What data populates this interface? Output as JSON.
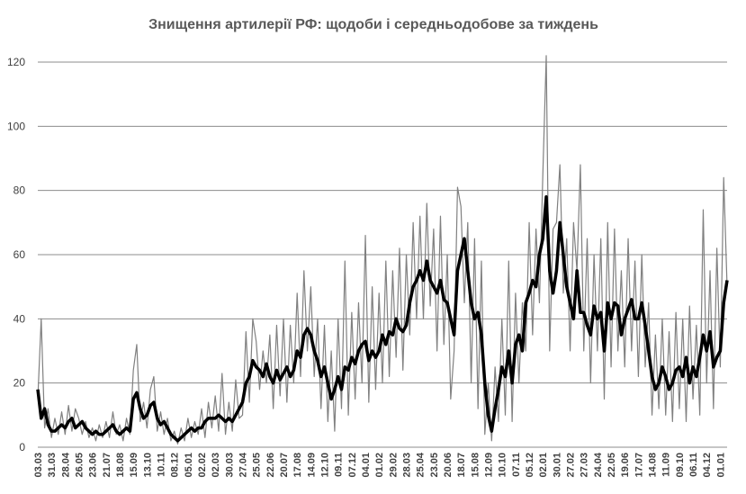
{
  "chart_data": {
    "type": "line",
    "title": "Знищення артилерії РФ: щодоби і середньодобове за тиждень",
    "categories": [
      "03.03",
      null,
      null,
      null,
      "31.03",
      null,
      null,
      null,
      "28.04",
      null,
      null,
      null,
      "26.05",
      null,
      null,
      null,
      "23.06",
      null,
      null,
      null,
      "21.07",
      null,
      null,
      null,
      "18.08",
      null,
      null,
      null,
      "15.09",
      null,
      null,
      null,
      "13.10",
      null,
      null,
      null,
      "10.11",
      null,
      null,
      null,
      "08.12",
      null,
      null,
      null,
      "05.01",
      null,
      null,
      null,
      "02.02",
      null,
      null,
      null,
      "02.03",
      null,
      null,
      null,
      "30.03",
      null,
      null,
      null,
      "27.04",
      null,
      null,
      null,
      "25.05",
      null,
      null,
      null,
      "22.06",
      null,
      null,
      null,
      "20.07",
      null,
      null,
      null,
      "17.08",
      null,
      null,
      null,
      "14.09",
      null,
      null,
      null,
      "12.10",
      null,
      null,
      null,
      "09.11",
      null,
      null,
      null,
      "07.12",
      null,
      null,
      null,
      "04.01",
      null,
      null,
      null,
      "01.02",
      null,
      null,
      null,
      "29.02",
      null,
      null,
      null,
      "28.03",
      null,
      null,
      null,
      "25.04",
      null,
      null,
      null,
      "23.05",
      null,
      null,
      null,
      "20.06",
      null,
      null,
      null,
      "18.07",
      null,
      null,
      null,
      "15.08",
      null,
      null,
      null,
      "12.09",
      null,
      null,
      null,
      "10.10",
      null,
      null,
      null,
      "07.11",
      null,
      null,
      null,
      "05.12",
      null,
      null,
      null,
      "02.01",
      null,
      null,
      null,
      "30.01",
      null,
      null,
      null,
      "27.02",
      null,
      null,
      null,
      "27.03",
      null,
      null,
      null,
      "24.04",
      null,
      null,
      null,
      "22.05",
      null,
      null,
      null,
      "19.06",
      null,
      null,
      null,
      "17.07",
      null,
      null,
      null,
      "14.08",
      null,
      null,
      null,
      "11.09",
      null,
      null,
      null,
      "09.10",
      null,
      null,
      null,
      "06.11",
      null,
      null,
      null,
      "04.12",
      null,
      null,
      null,
      "01.01",
      null,
      null
    ],
    "series": [
      {
        "color": "#808080",
        "width": 1.2,
        "values": [
          15,
          40,
          6,
          12,
          3,
          9,
          4,
          11,
          4,
          13,
          5,
          12,
          9,
          4,
          8,
          3,
          6,
          2,
          7,
          3,
          8,
          3,
          11,
          4,
          7,
          2,
          9,
          4,
          24,
          32,
          8,
          14,
          6,
          18,
          22,
          5,
          11,
          4,
          9,
          2,
          5,
          1,
          6,
          2,
          9,
          3,
          8,
          4,
          12,
          3,
          14,
          6,
          16,
          5,
          23,
          4,
          14,
          5,
          21,
          9,
          10,
          36,
          14,
          40,
          33,
          18,
          30,
          20,
          35,
          12,
          38,
          16,
          40,
          14,
          38,
          20,
          48,
          22,
          55,
          30,
          50,
          22,
          40,
          12,
          38,
          8,
          30,
          5,
          40,
          12,
          58,
          10,
          42,
          15,
          45,
          20,
          66,
          14,
          50,
          18,
          48,
          20,
          58,
          22,
          55,
          28,
          62,
          24,
          60,
          35,
          70,
          40,
          72,
          40,
          76,
          44,
          68,
          30,
          72,
          32,
          60,
          15,
          30,
          81,
          75,
          45,
          70,
          20,
          65,
          12,
          58,
          4,
          20,
          2,
          25,
          8,
          40,
          10,
          58,
          8,
          48,
          20,
          45,
          30,
          70,
          35,
          68,
          45,
          85,
          122,
          30,
          68,
          70,
          88,
          48,
          65,
          30,
          70,
          55,
          88,
          30,
          65,
          20,
          60,
          30,
          65,
          15,
          70,
          25,
          68,
          30,
          55,
          25,
          65,
          30,
          58,
          22,
          60,
          25,
          45,
          10,
          35,
          12,
          40,
          10,
          36,
          8,
          42,
          12,
          40,
          8,
          44,
          15,
          38,
          10,
          74,
          20,
          55,
          12,
          62,
          25,
          84,
          50
        ]
      },
      {
        "color": "#000000",
        "width": 3.5,
        "values": [
          18,
          9,
          12,
          7,
          5,
          5,
          6,
          7,
          6,
          8,
          9,
          6,
          7,
          8,
          6,
          5,
          4,
          5,
          4,
          4,
          5,
          6,
          7,
          5,
          4,
          5,
          6,
          5,
          15,
          17,
          12,
          9,
          10,
          13,
          14,
          9,
          7,
          8,
          6,
          4,
          3,
          2,
          3,
          4,
          5,
          6,
          5,
          6,
          6,
          8,
          9,
          9,
          9,
          10,
          9,
          8,
          9,
          8,
          10,
          12,
          14,
          20,
          22,
          27,
          25,
          24,
          22,
          26,
          22,
          20,
          24,
          21,
          23,
          25,
          22,
          24,
          30,
          28,
          35,
          37,
          35,
          30,
          27,
          22,
          25,
          20,
          15,
          18,
          22,
          18,
          25,
          24,
          28,
          26,
          30,
          32,
          33,
          27,
          30,
          28,
          30,
          35,
          32,
          36,
          35,
          40,
          37,
          36,
          38,
          45,
          50,
          52,
          55,
          52,
          58,
          52,
          50,
          48,
          52,
          46,
          45,
          40,
          35,
          55,
          60,
          65,
          55,
          45,
          40,
          42,
          35,
          20,
          10,
          5,
          12,
          18,
          25,
          22,
          30,
          20,
          32,
          35,
          30,
          45,
          48,
          52,
          50,
          60,
          65,
          78,
          55,
          48,
          55,
          70,
          60,
          50,
          45,
          40,
          55,
          42,
          42,
          38,
          35,
          44,
          40,
          42,
          30,
          45,
          40,
          45,
          44,
          35,
          40,
          43,
          46,
          40,
          40,
          45,
          38,
          30,
          22,
          18,
          20,
          25,
          22,
          18,
          20,
          24,
          25,
          22,
          28,
          20,
          25,
          22,
          28,
          35,
          30,
          36,
          25,
          28,
          30,
          45,
          52
        ]
      }
    ],
    "ylim": [
      0,
      120
    ],
    "yticks": [
      0,
      20,
      40,
      60,
      80,
      100,
      120
    ],
    "grid": true
  }
}
